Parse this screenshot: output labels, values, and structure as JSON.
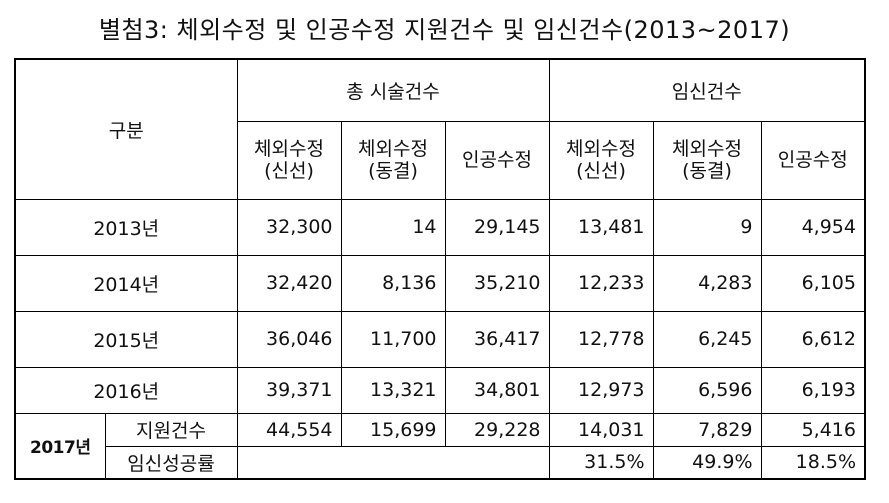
{
  "title": "별첨3: 체외수정 및 인공수정 지원건수 및 임신건수(2013~2017)",
  "header": {
    "category": "구분",
    "group_total": "총 시술건수",
    "group_pregnancy": "임신건수",
    "col_ivf_fresh_line1": "체외수정",
    "col_ivf_fresh_line2": "(신선)",
    "col_ivf_frozen_line1": "체외수정",
    "col_ivf_frozen_line2": "(동결)",
    "col_iui": "인공수정"
  },
  "rows": [
    {
      "label": "2013년",
      "values": [
        "32,300",
        "14",
        "29,145",
        "13,481",
        "9",
        "4,954"
      ]
    },
    {
      "label": "2014년",
      "values": [
        "32,420",
        "8,136",
        "35,210",
        "12,233",
        "4,283",
        "6,105"
      ]
    },
    {
      "label": "2015년",
      "values": [
        "36,046",
        "11,700",
        "36,417",
        "12,778",
        "6,245",
        "6,612"
      ]
    },
    {
      "label": "2016년",
      "values": [
        "39,371",
        "13,321",
        "34,801",
        "12,973",
        "6,596",
        "6,193"
      ]
    }
  ],
  "year2017": {
    "label": "2017년",
    "support": {
      "label": "지원건수",
      "values": [
        "44,554",
        "15,699",
        "29,228",
        "14,031",
        "7,829",
        "5,416"
      ]
    },
    "success": {
      "label": "임신성공률",
      "values": [
        "31.5%",
        "49.9%",
        "18.5%"
      ]
    }
  }
}
